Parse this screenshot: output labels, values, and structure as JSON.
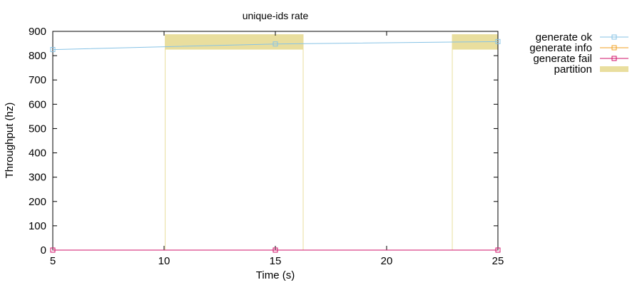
{
  "chart_data": {
    "type": "line",
    "title": "unique-ids rate",
    "xlabel": "Time (s)",
    "ylabel": "Throughput (hz)",
    "xlim": [
      5,
      25
    ],
    "ylim": [
      0,
      900
    ],
    "x_ticks": [
      5,
      10,
      15,
      20,
      25
    ],
    "y_ticks": [
      0,
      100,
      200,
      300,
      400,
      500,
      600,
      700,
      800,
      900
    ],
    "grid": false,
    "legend_position": "outside-right",
    "series": [
      {
        "name": "generate ok",
        "color": "#87c3e6",
        "marker": "open-square",
        "x": [
          5,
          15,
          25
        ],
        "y": [
          825,
          848,
          858
        ]
      },
      {
        "name": "generate info",
        "color": "#f0a020",
        "marker": "open-square",
        "x": [
          5,
          15,
          25
        ],
        "y": [
          0,
          0,
          0
        ]
      },
      {
        "name": "generate fail",
        "color": "#d0106a",
        "marker": "open-square",
        "x": [
          5,
          15,
          25
        ],
        "y": [
          0,
          0,
          0
        ]
      }
    ],
    "partition": {
      "name": "partition",
      "color": "#e9de9e",
      "intervals": [
        {
          "start": 10.05,
          "end": 16.25,
          "y_low": 825,
          "y_high": 888
        },
        {
          "start": 22.95,
          "end": 25,
          "y_low": 825,
          "y_high": 888
        }
      ]
    }
  }
}
